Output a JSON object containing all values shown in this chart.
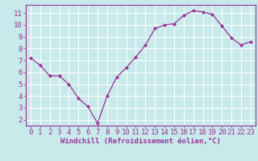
{
  "x": [
    0,
    1,
    2,
    3,
    4,
    5,
    6,
    7,
    8,
    9,
    10,
    11,
    12,
    13,
    14,
    15,
    16,
    17,
    18,
    19,
    20,
    21,
    22,
    23
  ],
  "y": [
    7.2,
    6.6,
    5.7,
    5.7,
    5.0,
    3.8,
    3.1,
    1.7,
    4.0,
    5.6,
    6.4,
    7.3,
    8.3,
    9.7,
    10.0,
    10.1,
    10.8,
    11.2,
    11.1,
    10.9,
    9.9,
    8.9,
    8.3,
    8.6
  ],
  "line_color": "#993399",
  "marker": "D",
  "marker_size": 2.0,
  "bg_color": "#c8eaea",
  "grid_color": "#ffffff",
  "xlabel": "Windchill (Refroidissement éolien,°C)",
  "xlim": [
    -0.5,
    23.5
  ],
  "ylim": [
    1.5,
    11.7
  ],
  "yticks": [
    2,
    3,
    4,
    5,
    6,
    7,
    8,
    9,
    10,
    11
  ],
  "xticks": [
    0,
    1,
    2,
    3,
    4,
    5,
    6,
    7,
    8,
    9,
    10,
    11,
    12,
    13,
    14,
    15,
    16,
    17,
    18,
    19,
    20,
    21,
    22,
    23
  ],
  "axis_color": "#993399",
  "label_color": "#993399",
  "tick_label_fontsize": 6.5,
  "xlabel_fontsize": 6.5
}
